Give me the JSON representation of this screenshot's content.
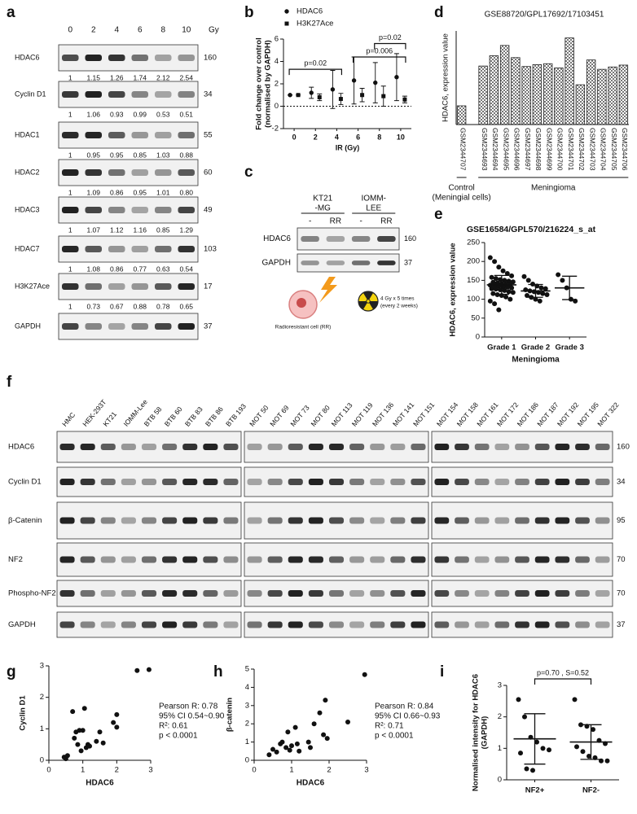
{
  "panel_letters": [
    "a",
    "b",
    "c",
    "d",
    "e",
    "f",
    "g",
    "h",
    "i"
  ],
  "blot_a": {
    "doses": [
      "0",
      "2",
      "4",
      "6",
      "8",
      "10"
    ],
    "unit": "Gy",
    "rows": [
      {
        "protein": "HDAC6",
        "kda": "160",
        "quant": [
          "1",
          "1.15",
          "1.26",
          "1.74",
          "2.12",
          "2.54"
        ]
      },
      {
        "protein": "Cyclin D1",
        "kda": "34",
        "quant": [
          "1",
          "1.06",
          "0.93",
          "0.99",
          "0.53",
          "0.51"
        ]
      },
      {
        "protein": "HDAC1",
        "kda": "55",
        "quant": [
          "1",
          "0.95",
          "0.95",
          "0.85",
          "1.03",
          "0.88"
        ]
      },
      {
        "protein": "HDAC2",
        "kda": "60",
        "quant": [
          "1",
          "1.09",
          "0.86",
          "0.95",
          "1.01",
          "0.80"
        ]
      },
      {
        "protein": "HDAC3",
        "kda": "49",
        "quant": [
          "1",
          "1.07",
          "1.12",
          "1.16",
          "0.85",
          "1.29"
        ]
      },
      {
        "protein": "HDAC7",
        "kda": "103",
        "quant": [
          "1",
          "1.08",
          "0.86",
          "0.77",
          "0.63",
          "0.54"
        ]
      },
      {
        "protein": "H3K27Ace",
        "kda": "17",
        "quant": [
          "1",
          "0.73",
          "0.67",
          "0.88",
          "0.78",
          "0.65"
        ]
      },
      {
        "protein": "GAPDH",
        "kda": "37"
      }
    ]
  },
  "blot_c": {
    "cell_lines": [
      [
        "KT21",
        "-MG"
      ],
      [
        "IOMM-",
        "LEE"
      ]
    ],
    "lanes": [
      "-",
      "RR",
      "-",
      "RR"
    ],
    "rows": [
      {
        "protein": "HDAC6",
        "kda": "160"
      },
      {
        "protein": "GAPDH",
        "kda": "37"
      }
    ],
    "cell_caption": "Radioresistant cell (RR)",
    "schedule": [
      "4 Gy x 5 times",
      "(every 2 weeks)"
    ]
  },
  "blot_f": {
    "lane_groups": [
      [
        "HMC",
        "HEK-293T",
        "KT21",
        "IOMM-Lee",
        "BTB 58",
        "BTB 60",
        "BTB 83",
        "BTB 86",
        "BTB 193"
      ],
      [
        "MOT 50",
        "MOT 69",
        "MOT 73",
        "MOT 80",
        "MOT 113",
        "MOT 119",
        "MOT 136",
        "MOT 141",
        "MOT 151"
      ],
      [
        "MOT 154",
        "MOT 158",
        "MOT 161",
        "MOT 172",
        "MOT 186",
        "MOT 187",
        "MOT 192",
        "MOT 195",
        "MOT 322"
      ]
    ],
    "rows": [
      {
        "protein": "HDAC6",
        "kda": "160"
      },
      {
        "protein": "Cyclin D1",
        "kda": "34"
      },
      {
        "protein": "β-Catenin",
        "kda": "95"
      },
      {
        "protein": "NF2",
        "kda": "70"
      },
      {
        "protein": "Phospho-NF2",
        "kda": "70"
      },
      {
        "protein": "GAPDH",
        "kda": "37"
      }
    ]
  },
  "chart_data": [
    {
      "type": "dot",
      "categories": [
        "0",
        "2",
        "4",
        "6",
        "8",
        "10"
      ],
      "series": [
        {
          "name": "HDAC6",
          "marker": "circle",
          "color": "#111111",
          "values": [
            1,
            1.2,
            1.5,
            2.3,
            2.1,
            2.6
          ],
          "errors": [
            0,
            0.5,
            1.7,
            2.1,
            1.8,
            2.1
          ]
        },
        {
          "name": "H3K27Ace",
          "marker": "square",
          "color": "#111111",
          "values": [
            1,
            0.8,
            0.65,
            1.0,
            0.9,
            0.6
          ],
          "errors": [
            0,
            0.3,
            0.5,
            0.6,
            0.9,
            0.3
          ]
        }
      ],
      "xlabel": "IR (Gy)",
      "ylabel": [
        "Fold change over control",
        "(normalised by GAPDH)"
      ],
      "ylim": [
        -2,
        6
      ],
      "yticks": [
        -2,
        0,
        2,
        4,
        6
      ],
      "reference_line": 0,
      "legend": "top-left",
      "annotations": [
        {
          "text": "p=0.02",
          "between": [
            "0",
            "4"
          ]
        },
        {
          "text": "p=0.006",
          "between": [
            "6",
            "10"
          ]
        },
        {
          "text": "p=0.02",
          "between": [
            "8",
            "10"
          ]
        }
      ]
    },
    {
      "type": "bar",
      "title": "GSE88720/GPL17692/17103451",
      "ylabel": "HDAC6, expression value",
      "color": "#777777",
      "categories": [
        "GSM2344707",
        "GSM2344693",
        "GSM2344694",
        "GSM2344695",
        "GSM2344696",
        "GSM2344697",
        "GSM2344698",
        "GSM2344699",
        "GSM2344700",
        "GSM2344701",
        "GSM2344702",
        "GSM2344703",
        "GSM2344704",
        "GSM2344705",
        "GSM2344706"
      ],
      "values": [
        4.4,
        5.25,
        5.47,
        5.69,
        5.43,
        5.24,
        5.28,
        5.3,
        5.21,
        5.85,
        4.85,
        5.38,
        5.18,
        5.23,
        5.27
      ],
      "ylim": [
        4,
        6
      ],
      "groups": [
        {
          "label": [
            "Control",
            "(Meningial cells)"
          ],
          "from": "GSM2344707",
          "to": "GSM2344707"
        },
        {
          "label": [
            "Meningioma"
          ],
          "from": "GSM2344693",
          "to": "GSM2344706"
        }
      ]
    },
    {
      "type": "dot-plot",
      "title": "GSE16584/GPL570/216224_s_at",
      "ylabel": "HDAC6, expression value",
      "xlabel": "Meningioma",
      "categories": [
        "Grade 1",
        "Grade 2",
        "Grade 3"
      ],
      "points": [
        [
          210,
          200,
          185,
          175,
          168,
          162,
          158,
          155,
          152,
          150,
          148,
          146,
          145,
          143,
          141,
          140,
          138,
          137,
          136,
          135,
          133,
          132,
          130,
          128,
          127,
          125,
          123,
          120,
          118,
          115,
          112,
          110,
          106,
          100,
          95,
          88,
          72
        ],
        [
          160,
          150,
          140,
          135,
          130,
          128,
          125,
          122,
          120,
          118,
          115,
          112,
          110,
          105,
          100,
          95
        ],
        [
          165,
          150,
          130,
          100,
          95
        ]
      ],
      "means": [
        138,
        122,
        130
      ],
      "sd": [
        25,
        17,
        31
      ],
      "ylim": [
        0,
        250
      ],
      "yticks": [
        0,
        50,
        100,
        150,
        200,
        250
      ]
    },
    {
      "type": "scatter",
      "xlabel": "HDAC6",
      "ylabel": "Cyclin D1",
      "x": [
        0.45,
        0.5,
        0.55,
        0.7,
        0.75,
        0.8,
        0.85,
        0.9,
        0.95,
        1.0,
        1.05,
        1.1,
        1.15,
        1.2,
        1.4,
        1.5,
        1.6,
        1.9,
        2.0,
        2.0,
        2.6,
        2.95
      ],
      "values": [
        0.1,
        0.05,
        0.15,
        1.55,
        0.7,
        0.9,
        0.5,
        0.95,
        0.3,
        0.95,
        1.65,
        0.4,
        0.5,
        0.45,
        0.6,
        0.9,
        0.55,
        1.2,
        1.45,
        1.05,
        2.85,
        2.88
      ],
      "xlim": [
        0,
        3
      ],
      "xticks": [
        0,
        1,
        2,
        3
      ],
      "ylim": [
        0,
        3
      ],
      "yticks": [
        0,
        1,
        2,
        3
      ],
      "stats": [
        "Pearson R: 0.78",
        "95% CI 0.54~0.90",
        "R²: 0.61",
        "p < 0.0001"
      ]
    },
    {
      "type": "scatter",
      "xlabel": "HDAC6",
      "ylabel": "β-catenin",
      "x": [
        0.4,
        0.5,
        0.6,
        0.7,
        0.75,
        0.85,
        0.9,
        0.95,
        1.0,
        1.1,
        1.15,
        1.2,
        1.45,
        1.5,
        1.6,
        1.75,
        1.85,
        1.9,
        1.95,
        2.5,
        2.95
      ],
      "values": [
        0.3,
        0.6,
        0.45,
        0.9,
        1.0,
        0.7,
        1.55,
        0.55,
        0.8,
        1.8,
        0.9,
        0.5,
        1.0,
        0.7,
        2.0,
        2.6,
        1.4,
        3.3,
        1.2,
        2.1,
        4.7
      ],
      "xlim": [
        0,
        3
      ],
      "xticks": [
        0,
        1,
        2,
        3
      ],
      "ylim": [
        0,
        5
      ],
      "yticks": [
        0,
        1,
        2,
        3,
        4,
        5
      ],
      "stats": [
        "Pearson R: 0.84",
        "95% CI 0.66~0.93",
        "R²: 0.71",
        "p < 0.0001"
      ]
    },
    {
      "type": "dot-plot",
      "ylabel": [
        "Normalised intensity for HDAC6",
        "(GAPDH)"
      ],
      "categories": [
        "NF2+",
        "NF2-"
      ],
      "points": [
        [
          2.55,
          2.0,
          1.35,
          1.2,
          1.0,
          0.95,
          0.85,
          0.35,
          0.3
        ],
        [
          2.55,
          1.75,
          1.7,
          1.6,
          1.25,
          1.15,
          1.05,
          0.9,
          0.75,
          0.7,
          0.6,
          0.6
        ]
      ],
      "means": [
        1.3,
        1.2
      ],
      "sd": [
        0.8,
        0.55
      ],
      "ylim": [
        0,
        3
      ],
      "yticks": [
        0,
        1,
        2,
        3
      ],
      "annotations": [
        {
          "text": "p=0.70 , S=0.52",
          "between": [
            "NF2+",
            "NF2-"
          ]
        }
      ]
    }
  ]
}
